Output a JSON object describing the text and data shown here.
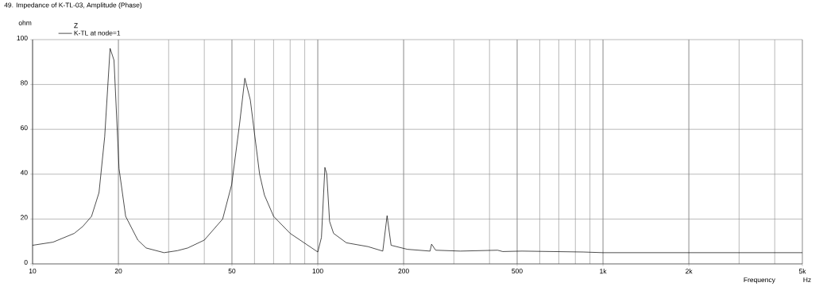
{
  "chart_data": {
    "type": "line",
    "title": "49. Impedance of K-TL-03, Amplitude (Phase)",
    "xlabel": "Frequency",
    "ylabel": "ohm",
    "legend_title": "Z",
    "annotations": [
      "Hz"
    ],
    "log": "x",
    "grid": true,
    "legend": "top left",
    "marker": "none",
    "line_style": "solid",
    "xlim": [
      10,
      5000
    ],
    "ylim": [
      0,
      100
    ],
    "xticks": [
      10,
      20,
      50,
      100,
      200,
      500,
      {
        "value": 1000,
        "label": "1k"
      },
      {
        "value": 2000,
        "label": "2k"
      },
      {
        "value": 5000,
        "label": "5k"
      }
    ],
    "yticks": [
      0,
      20,
      40,
      60,
      80,
      100
    ],
    "x": [
      10,
      11.8,
      14,
      15,
      16.1,
      17.1,
      17.9,
      18.7,
      19.3,
      20.1,
      21.2,
      23.4,
      25,
      28.9,
      32.2,
      35,
      40,
      46.4,
      49.9,
      53.2,
      55.5,
      58,
      62.5,
      65,
      70,
      80,
      100,
      103,
      105.9,
      107.5,
      110,
      113.6,
      126,
      150,
      169,
      175,
      180.7,
      206,
      247.5,
      250.6,
      259,
      316,
      427,
      445,
      520,
      852,
      1000,
      5000
    ],
    "series": [
      {
        "name": "K-TL at node=1",
        "color": "#000000",
        "values": [
          8.3,
          9.7,
          13.6,
          16.7,
          21.2,
          31.8,
          56.6,
          96.1,
          90.8,
          42.5,
          21.2,
          10.6,
          7.1,
          5.0,
          5.9,
          7.1,
          10.6,
          20,
          35.4,
          62.5,
          82.8,
          73.1,
          40.1,
          30.7,
          21.2,
          13.6,
          5.3,
          11.8,
          43.0,
          40.1,
          18.9,
          13.6,
          9.4,
          7.7,
          5.7,
          21.5,
          8.3,
          6.5,
          5.7,
          8.8,
          6.1,
          5.7,
          6.1,
          5.5,
          5.7,
          5.3,
          5.0,
          5.0
        ]
      }
    ]
  }
}
